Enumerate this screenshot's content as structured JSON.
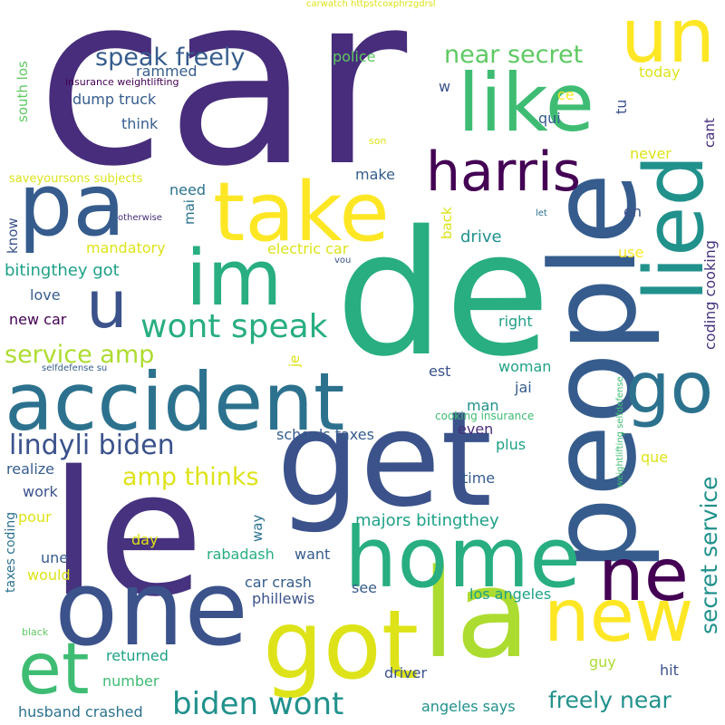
{
  "palette": {
    "c0": "#46327e",
    "c1": "#472d7b",
    "c2": "#3b528b",
    "c3": "#365c8d",
    "c4": "#2c728e",
    "c5": "#21918c",
    "c6": "#1fa187",
    "c7": "#28ae80",
    "c8": "#3fbc73",
    "c9": "#5ec962",
    "c10": "#addc30",
    "c11": "#dde318",
    "c12": "#fde725",
    "c13": "#440154"
  },
  "words": [
    {
      "text": "car",
      "color": "c1"
    },
    {
      "text": "de",
      "color": "c7"
    },
    {
      "text": "le",
      "color": "c0"
    },
    {
      "text": "get",
      "color": "c2"
    },
    {
      "text": "people",
      "color": "c3"
    },
    {
      "text": "accident",
      "color": "c4"
    },
    {
      "text": "one",
      "color": "c2"
    },
    {
      "text": "la",
      "color": "c10"
    },
    {
      "text": "got",
      "color": "c11"
    },
    {
      "text": "home",
      "color": "c7"
    },
    {
      "text": "pa",
      "color": "c3"
    },
    {
      "text": "take",
      "color": "c12"
    },
    {
      "text": "im",
      "color": "c7"
    },
    {
      "text": "like",
      "color": "c8"
    },
    {
      "text": "un",
      "color": "c12"
    },
    {
      "text": "harris",
      "color": "c13"
    },
    {
      "text": "lied",
      "color": "c5"
    },
    {
      "text": "new",
      "color": "c12"
    },
    {
      "text": "ne",
      "color": "c13"
    },
    {
      "text": "go",
      "color": "c4"
    },
    {
      "text": "et",
      "color": "c8"
    },
    {
      "text": "u",
      "color": "c2"
    },
    {
      "text": "wont speak",
      "color": "c7"
    },
    {
      "text": "lindyli biden",
      "color": "c2"
    },
    {
      "text": "biden wont",
      "color": "c5"
    },
    {
      "text": "speak freely",
      "color": "c3"
    },
    {
      "text": "near secret",
      "color": "c9"
    },
    {
      "text": "service amp",
      "color": "c10"
    },
    {
      "text": "amp thinks",
      "color": "c11"
    },
    {
      "text": "secret service",
      "color": "c5"
    },
    {
      "text": "freely near",
      "color": "c5"
    },
    {
      "text": "bitingthey got",
      "color": "c6"
    },
    {
      "text": "majors bitingthey",
      "color": "c6"
    },
    {
      "text": "coding cooking",
      "color": "c0"
    },
    {
      "text": "electric car",
      "color": "c11"
    },
    {
      "text": "schools taxes",
      "color": "c3"
    },
    {
      "text": "husband crashed",
      "color": "c4"
    },
    {
      "text": "angeles says",
      "color": "c5"
    },
    {
      "text": "los angeles",
      "color": "c6"
    },
    {
      "text": "car crash",
      "color": "c3"
    },
    {
      "text": "phillewis",
      "color": "c2"
    },
    {
      "text": "dump truck",
      "color": "c3"
    },
    {
      "text": "rammed",
      "color": "c3"
    },
    {
      "text": "think",
      "color": "c3"
    },
    {
      "text": "police",
      "color": "c9"
    },
    {
      "text": "mandatory",
      "color": "c11"
    },
    {
      "text": "drive",
      "color": "c5"
    },
    {
      "text": "woman",
      "color": "c6"
    },
    {
      "text": "returned",
      "color": "c6"
    },
    {
      "text": "number",
      "color": "c8"
    },
    {
      "text": "driver",
      "color": "c2"
    },
    {
      "text": "rabadash",
      "color": "c7"
    },
    {
      "text": "want",
      "color": "c3"
    },
    {
      "text": "work",
      "color": "c2"
    },
    {
      "text": "realize",
      "color": "c3"
    },
    {
      "text": "new car",
      "color": "c13"
    },
    {
      "text": "love",
      "color": "c3"
    },
    {
      "text": "need",
      "color": "c4"
    },
    {
      "text": "make",
      "color": "c3"
    },
    {
      "text": "today",
      "color": "c11"
    },
    {
      "text": "right",
      "color": "c6"
    },
    {
      "text": "est",
      "color": "c2"
    },
    {
      "text": "jai",
      "color": "c3"
    },
    {
      "text": "man",
      "color": "c5"
    },
    {
      "text": "even",
      "color": "c1"
    },
    {
      "text": "plus",
      "color": "c6"
    },
    {
      "text": "que",
      "color": "c11"
    },
    {
      "text": "time",
      "color": "c3"
    },
    {
      "text": "see",
      "color": "c3"
    },
    {
      "text": "guy",
      "color": "c10"
    },
    {
      "text": "hit",
      "color": "c2"
    },
    {
      "text": "day",
      "color": "c11"
    },
    {
      "text": "pour",
      "color": "c11"
    },
    {
      "text": "une",
      "color": "c3"
    },
    {
      "text": "would",
      "color": "c11"
    },
    {
      "text": "qui",
      "color": "c3"
    },
    {
      "text": "tu",
      "color": "c2"
    },
    {
      "text": "w",
      "color": "c2"
    },
    {
      "text": "ce",
      "color": "c12"
    },
    {
      "text": "never",
      "color": "c11"
    },
    {
      "text": "en",
      "color": "c2"
    },
    {
      "text": "use",
      "color": "c12"
    },
    {
      "text": "cant",
      "color": "c1"
    },
    {
      "text": "back",
      "color": "c11"
    },
    {
      "text": "know",
      "color": "c2"
    },
    {
      "text": "mai",
      "color": "c4"
    },
    {
      "text": "way",
      "color": "c4"
    },
    {
      "text": "je",
      "color": "c11"
    },
    {
      "text": "son",
      "color": "c11"
    },
    {
      "text": "let",
      "color": "c4"
    },
    {
      "text": "otherwise",
      "color": "c1"
    },
    {
      "text": "vou",
      "color": "c2"
    },
    {
      "text": "black",
      "color": "c9"
    },
    {
      "text": "south los",
      "color": "c9"
    },
    {
      "text": "taxes coding",
      "color": "c4"
    },
    {
      "text": "saveyoursons subjects",
      "color": "c11"
    },
    {
      "text": "insurance weightlifting",
      "color": "c13"
    },
    {
      "text": "selfdefense su",
      "color": "c3"
    },
    {
      "text": "cooking insurance",
      "color": "c8"
    },
    {
      "text": "weightlifting selfdefense",
      "color": "c8"
    },
    {
      "text": "carwatch httpstcoxphrzgdrsl",
      "color": "c11"
    }
  ]
}
